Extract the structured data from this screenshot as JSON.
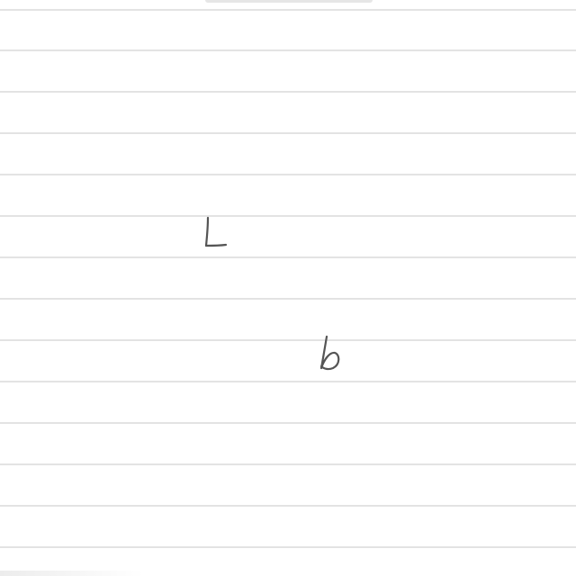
{
  "canvas": {
    "paper": "lined",
    "background_color": "#ffffff",
    "rule_color": "#e3e3e3",
    "ink_color": "#555555"
  },
  "handwriting": {
    "strokes": [
      "L",
      "b"
    ]
  }
}
